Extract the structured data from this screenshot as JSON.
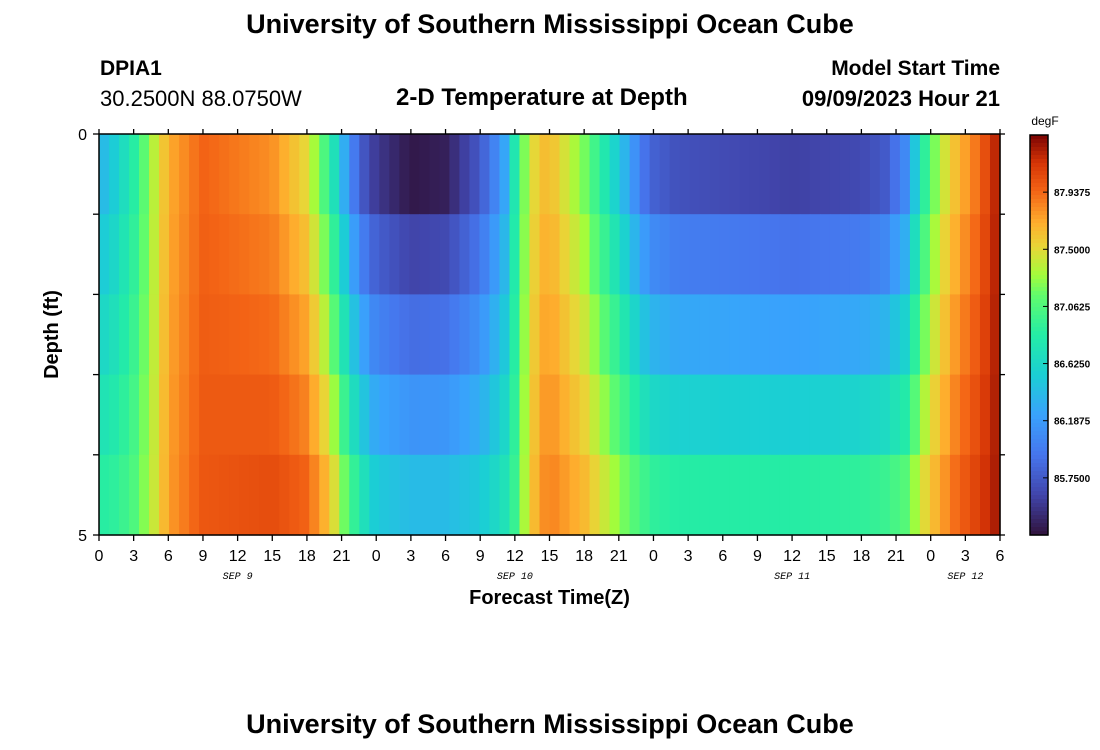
{
  "page": {
    "title": "University of Southern Mississippi Ocean Cube",
    "station_id": "DPIA1",
    "station_coords": "30.2500N  88.0750W",
    "plot_title": "2-D Temperature at Depth",
    "model_start_label": "Model Start Time",
    "model_start_value": "09/09/2023 Hour 21",
    "second_panel_title": "University of Southern Mississippi Ocean Cube"
  },
  "chart_data": {
    "type": "heatmap",
    "title": "2-D Temperature at Depth",
    "xlabel": "Forecast Time(Z)",
    "ylabel": "Depth (ft)",
    "x_hours_range": [
      0,
      78
    ],
    "x_tick_labels": [
      "0",
      "3",
      "6",
      "9",
      "12",
      "15",
      "18",
      "21",
      "0",
      "3",
      "6",
      "9",
      "12",
      "15",
      "18",
      "21",
      "0",
      "3",
      "6",
      "9",
      "12",
      "15",
      "18",
      "21",
      "0",
      "3",
      "6"
    ],
    "x_day_labels": [
      {
        "text": "SEP 9",
        "hour": 12
      },
      {
        "text": "SEP 10",
        "hour": 36
      },
      {
        "text": "SEP 11",
        "hour": 60
      },
      {
        "text": "SEP 12",
        "hour": 75
      }
    ],
    "y_tick_labels": [
      "0",
      "5"
    ],
    "ylim": [
      0,
      5
    ],
    "depth_levels": 5,
    "colorbar": {
      "unit": "degF",
      "range": [
        85.3125,
        88.375
      ],
      "tick_labels": [
        "87.9375",
        "87.5000",
        "87.0625",
        "86.6250",
        "86.1875",
        "85.7500"
      ],
      "tick_values": [
        87.9375,
        87.5,
        87.0625,
        86.625,
        86.1875,
        85.75
      ]
    },
    "time_profile_keys": {
      "hours": [
        0,
        1.5,
        3,
        4.5,
        6,
        9,
        15,
        18,
        20,
        21,
        22.5,
        24,
        27,
        30,
        33,
        35,
        36,
        37,
        38,
        39,
        42,
        45,
        47,
        48,
        50,
        55,
        60,
        66,
        68,
        70,
        71,
        72,
        73,
        74,
        76,
        78
      ],
      "v_surface": [
        86.35,
        86.55,
        86.85,
        87.3,
        87.7,
        87.95,
        87.8,
        87.5,
        86.9,
        86.4,
        85.8,
        85.55,
        85.35,
        85.4,
        85.75,
        86.2,
        86.8,
        87.3,
        87.6,
        87.65,
        87.2,
        86.5,
        85.95,
        85.8,
        85.7,
        85.65,
        85.6,
        85.65,
        85.75,
        86.1,
        86.7,
        87.1,
        87.4,
        87.6,
        87.9,
        88.3
      ],
      "v_bottom": [
        86.85,
        86.9,
        87.05,
        87.35,
        87.75,
        88.0,
        88.05,
        87.95,
        87.6,
        87.25,
        86.8,
        86.5,
        86.4,
        86.4,
        86.5,
        86.7,
        86.95,
        87.4,
        87.75,
        87.85,
        87.65,
        87.25,
        87.0,
        86.9,
        86.85,
        86.85,
        86.85,
        86.9,
        86.95,
        87.1,
        87.4,
        87.6,
        87.75,
        87.9,
        88.1,
        88.3
      ]
    },
    "time_steps": 90
  }
}
